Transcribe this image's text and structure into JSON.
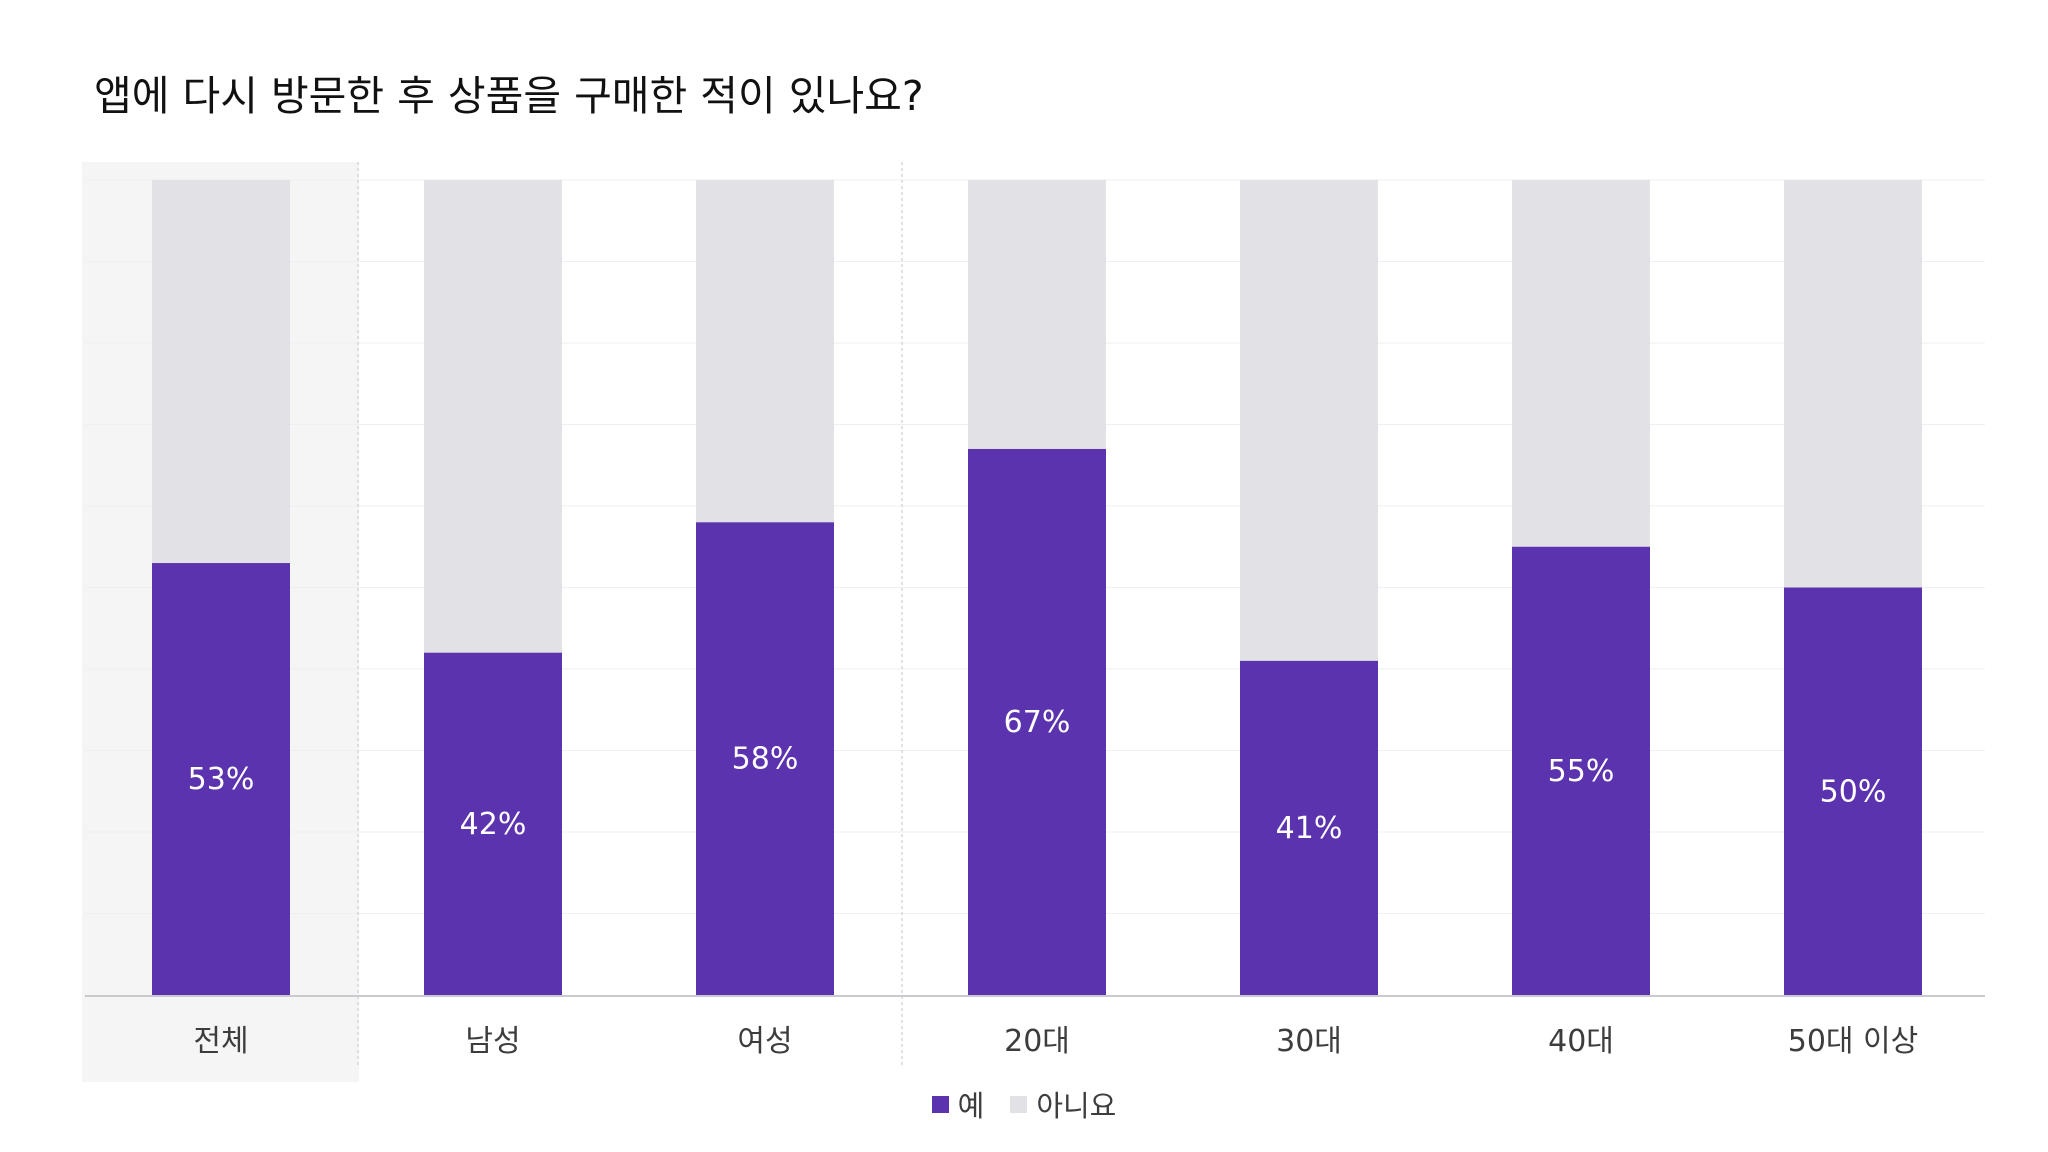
{
  "chart_data": {
    "type": "bar",
    "stacked": true,
    "percent": true,
    "title": "앱에 다시 방문한 후 상품을 구매한 적이 있나요?",
    "categories": [
      "전체",
      "남성",
      "여성",
      "20대",
      "30대",
      "40대",
      "50대 이상"
    ],
    "highlighted_category": "전체",
    "groups": [
      [
        "전체"
      ],
      [
        "남성",
        "여성"
      ],
      [
        "20대",
        "30대",
        "40대",
        "50대 이상"
      ]
    ],
    "series": [
      {
        "name": "예",
        "values": [
          53,
          42,
          58,
          67,
          41,
          55,
          50
        ],
        "color": "#5c33ae"
      },
      {
        "name": "아니요",
        "values": [
          47,
          58,
          42,
          33,
          59,
          45,
          50
        ],
        "color": "#e2e1e6"
      }
    ],
    "data_labels": [
      "53%",
      "42%",
      "58%",
      "67%",
      "41%",
      "55%",
      "50%"
    ],
    "ylim": [
      0,
      100
    ],
    "grid": true,
    "legend_position": "bottom-center"
  }
}
